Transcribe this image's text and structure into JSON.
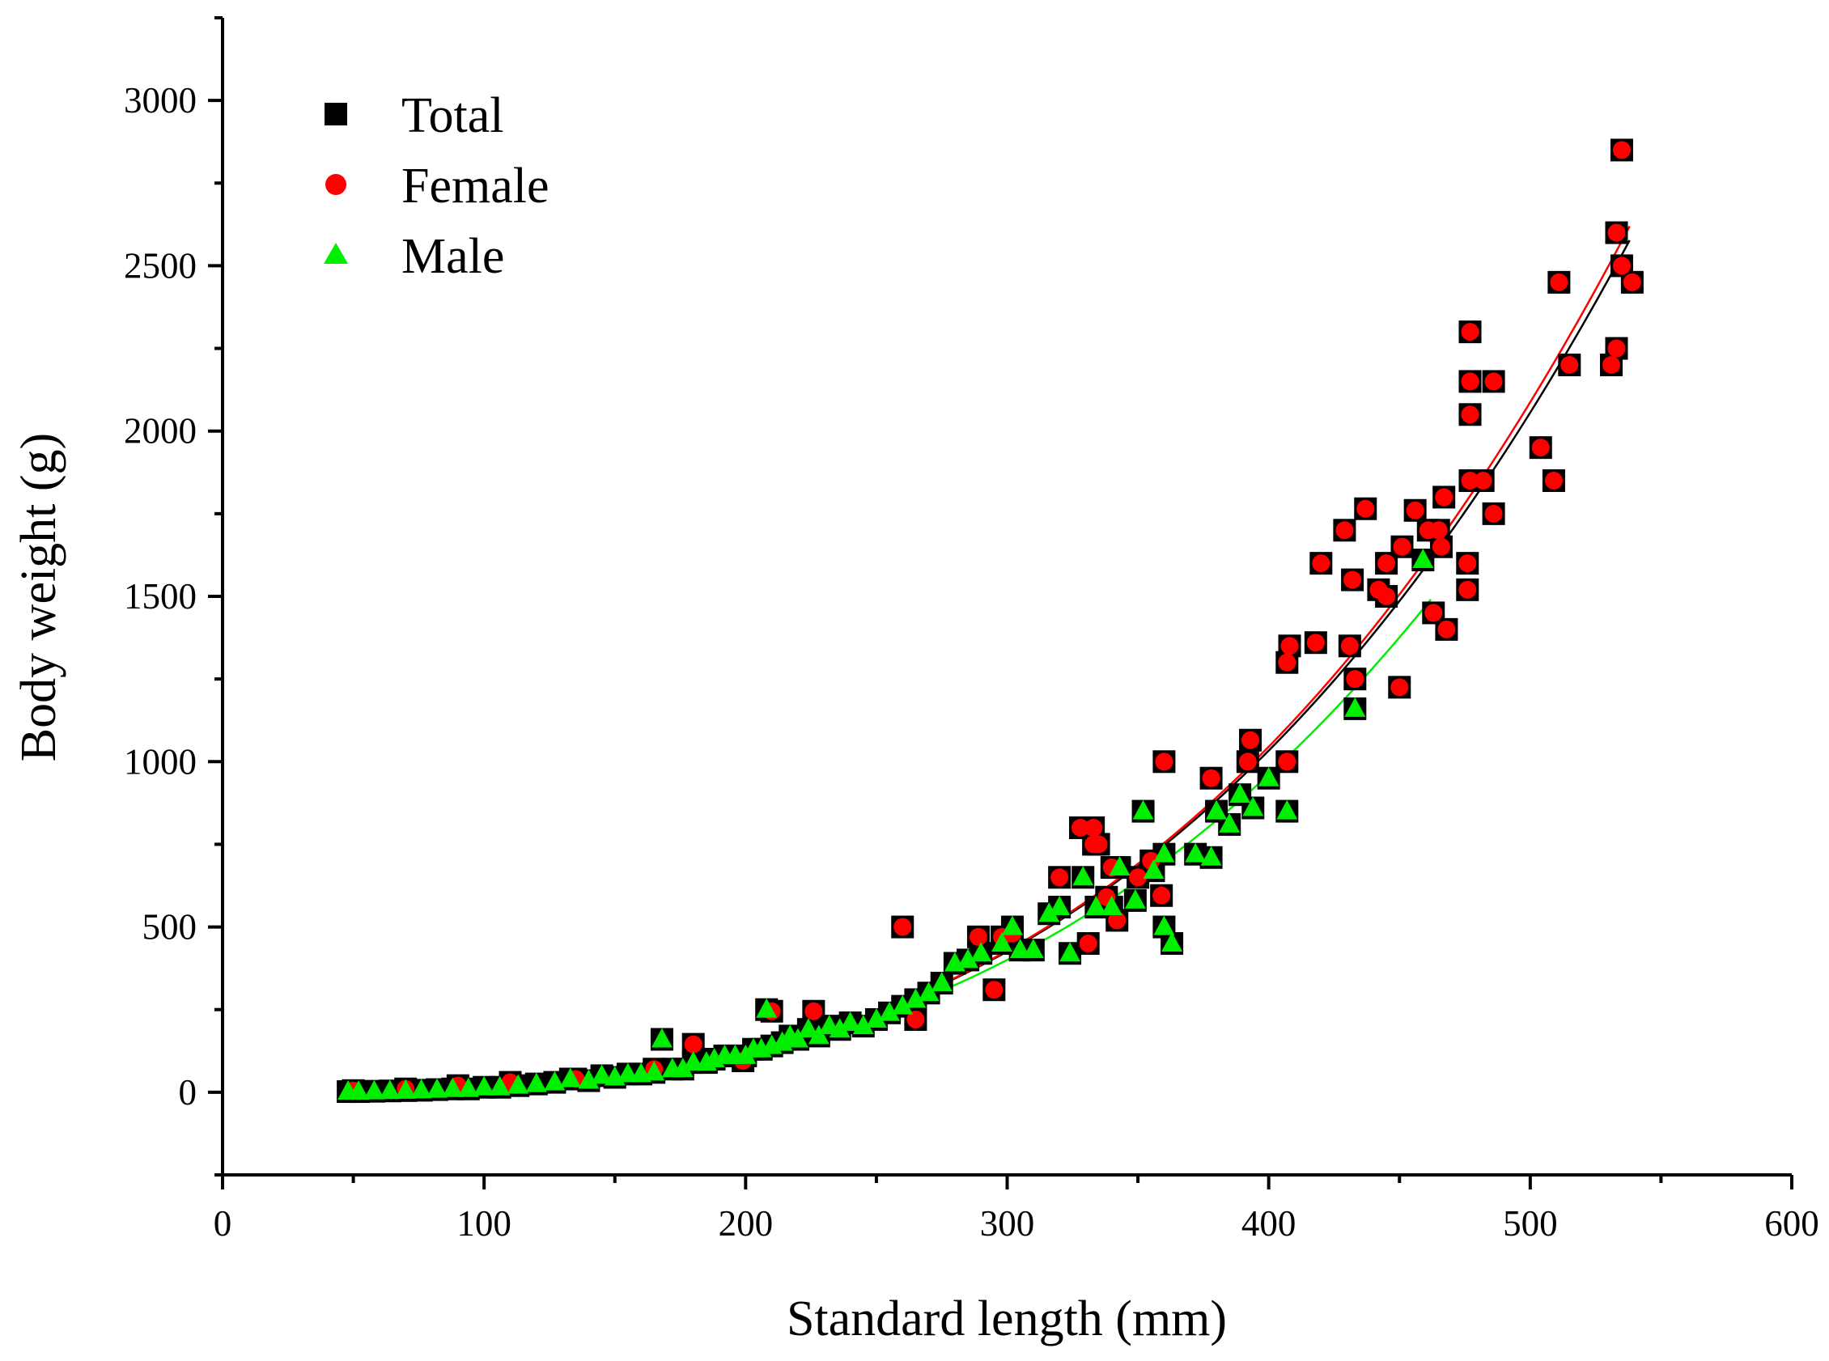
{
  "chart_data": {
    "type": "scatter",
    "title": "",
    "xlabel": "Standard length (mm)",
    "ylabel": "Body weight (g)",
    "xlim": [
      0,
      600
    ],
    "ylim": [
      -250,
      3250
    ],
    "xticks": [
      0,
      100,
      200,
      300,
      400,
      500,
      600
    ],
    "xtick_labels": [
      "0",
      "100",
      "200",
      "300",
      "400",
      "500",
      "600"
    ],
    "yticks": [
      0,
      500,
      1000,
      1500,
      2000,
      2500,
      3000
    ],
    "ytick_labels": [
      "0",
      "500",
      "1000",
      "1500",
      "2000",
      "2500",
      "3000"
    ],
    "grid": false,
    "legend_position": "top-left",
    "series": [
      {
        "name": "Total",
        "marker": "square",
        "color": "#000000",
        "fit": {
          "a": 9.82e-06,
          "b": 3.083,
          "x_range": [
            48,
            538
          ],
          "color": "#000000"
        }
      },
      {
        "name": "Female",
        "marker": "circle",
        "color": "#ff0000",
        "fit": {
          "a": 8.97e-06,
          "b": 3.1,
          "x_range": [
            48,
            538
          ],
          "color": "#ff0000"
        },
        "points": [
          [
            535,
            2850
          ],
          [
            533,
            2600
          ],
          [
            535,
            2500
          ],
          [
            539,
            2450
          ],
          [
            511,
            2450
          ],
          [
            533,
            2250
          ],
          [
            531,
            2200
          ],
          [
            515,
            2200
          ],
          [
            477,
            2300
          ],
          [
            477,
            2150
          ],
          [
            486,
            2150
          ],
          [
            477,
            2050
          ],
          [
            504,
            1950
          ],
          [
            509,
            1850
          ],
          [
            477,
            1850
          ],
          [
            482,
            1850
          ],
          [
            486,
            1750
          ],
          [
            437,
            1765
          ],
          [
            456,
            1760
          ],
          [
            467,
            1800
          ],
          [
            429,
            1700
          ],
          [
            461,
            1700
          ],
          [
            465,
            1700
          ],
          [
            420,
            1600
          ],
          [
            445,
            1600
          ],
          [
            451,
            1650
          ],
          [
            466,
            1650
          ],
          [
            476,
            1600
          ],
          [
            432,
            1550
          ],
          [
            442,
            1520
          ],
          [
            445,
            1500
          ],
          [
            476,
            1520
          ],
          [
            463,
            1450
          ],
          [
            468,
            1400
          ],
          [
            408,
            1350
          ],
          [
            418,
            1360
          ],
          [
            431,
            1350
          ],
          [
            407,
            1300
          ],
          [
            433,
            1250
          ],
          [
            450,
            1225
          ],
          [
            360,
            1000
          ],
          [
            393,
            1065
          ],
          [
            407,
            1000
          ],
          [
            392,
            1000
          ],
          [
            378,
            950
          ],
          [
            328,
            800
          ],
          [
            333,
            800
          ],
          [
            333,
            750
          ],
          [
            335,
            750
          ],
          [
            340,
            680
          ],
          [
            355,
            700
          ],
          [
            350,
            650
          ],
          [
            320,
            650
          ],
          [
            338,
            590
          ],
          [
            359,
            595
          ],
          [
            342,
            520
          ],
          [
            331,
            450
          ],
          [
            260,
            500
          ],
          [
            289,
            470
          ],
          [
            295,
            310
          ],
          [
            298,
            470
          ],
          [
            302,
            480
          ],
          [
            265,
            220
          ],
          [
            226,
            245
          ],
          [
            210,
            245
          ],
          [
            180,
            145
          ],
          [
            199,
            95
          ],
          [
            165,
            70
          ],
          [
            135,
            40
          ],
          [
            110,
            30
          ],
          [
            90,
            20
          ],
          [
            70,
            10
          ],
          [
            50,
            5
          ]
        ]
      },
      {
        "name": "Male",
        "marker": "triangle",
        "color": "#00ee00",
        "fit": {
          "a": 1.14e-05,
          "b": 3.046,
          "x_range": [
            48,
            462
          ],
          "color": "#00ee00"
        },
        "points": [
          [
            459,
            1610
          ],
          [
            433,
            1160
          ],
          [
            407,
            850
          ],
          [
            400,
            950
          ],
          [
            394,
            860
          ],
          [
            389,
            900
          ],
          [
            385,
            810
          ],
          [
            380,
            850
          ],
          [
            378,
            710
          ],
          [
            372,
            720
          ],
          [
            363,
            450
          ],
          [
            360,
            500
          ],
          [
            360,
            720
          ],
          [
            356,
            670
          ],
          [
            352,
            850
          ],
          [
            349,
            580
          ],
          [
            343,
            680
          ],
          [
            340,
            560
          ],
          [
            334,
            560
          ],
          [
            329,
            650
          ],
          [
            324,
            420
          ],
          [
            320,
            560
          ],
          [
            316,
            540
          ],
          [
            310,
            430
          ],
          [
            305,
            430
          ],
          [
            302,
            500
          ],
          [
            298,
            450
          ],
          [
            290,
            420
          ],
          [
            285,
            400
          ],
          [
            280,
            390
          ],
          [
            275,
            330
          ],
          [
            270,
            300
          ],
          [
            265,
            280
          ],
          [
            260,
            260
          ],
          [
            255,
            240
          ],
          [
            250,
            220
          ],
          [
            245,
            200
          ],
          [
            240,
            210
          ],
          [
            236,
            190
          ],
          [
            232,
            200
          ],
          [
            228,
            170
          ],
          [
            224,
            190
          ],
          [
            220,
            160
          ],
          [
            217,
            170
          ],
          [
            214,
            150
          ],
          [
            210,
            140
          ],
          [
            208,
            250
          ],
          [
            206,
            130
          ],
          [
            203,
            130
          ],
          [
            200,
            110
          ],
          [
            196,
            110
          ],
          [
            192,
            110
          ],
          [
            188,
            100
          ],
          [
            185,
            90
          ],
          [
            180,
            90
          ],
          [
            176,
            70
          ],
          [
            172,
            70
          ],
          [
            168,
            160
          ],
          [
            165,
            60
          ],
          [
            160,
            55
          ],
          [
            155,
            55
          ],
          [
            150,
            45
          ],
          [
            145,
            50
          ],
          [
            140,
            35
          ],
          [
            133,
            40
          ],
          [
            127,
            30
          ],
          [
            120,
            25
          ],
          [
            113,
            20
          ],
          [
            106,
            15
          ],
          [
            100,
            15
          ],
          [
            94,
            10
          ],
          [
            88,
            10
          ],
          [
            82,
            8
          ],
          [
            76,
            6
          ],
          [
            70,
            5
          ],
          [
            64,
            4
          ],
          [
            58,
            3
          ],
          [
            52,
            2
          ],
          [
            48,
            2
          ]
        ]
      }
    ]
  }
}
